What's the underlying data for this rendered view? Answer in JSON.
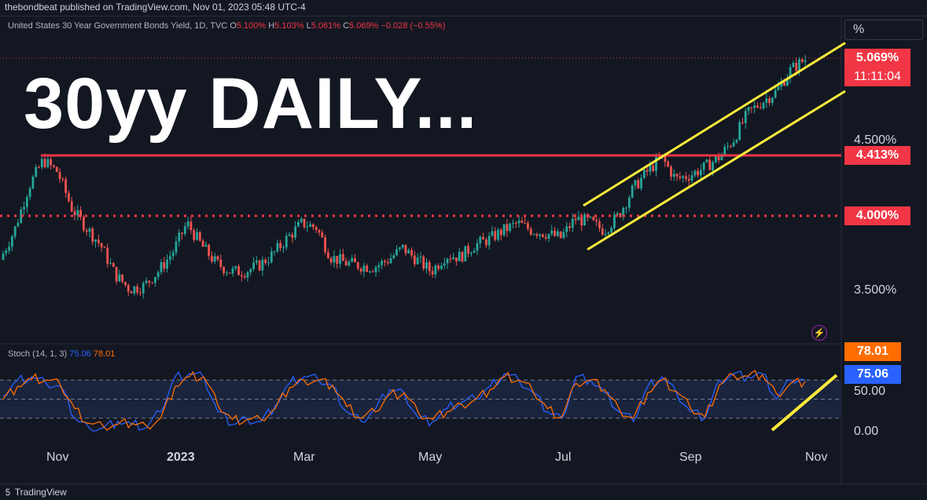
{
  "header": {
    "publisher": "thebondbeat published on TradingView.com, Nov 01, 2023 05:48 UTC-4"
  },
  "symbol": {
    "name": "United States 30 Year Government Bonds Yield, 1D, TVC",
    "o_label": "O",
    "o_value": "5.100%",
    "h_label": "H",
    "h_value": "5.103%",
    "l_label": "L",
    "l_value": "5.061%",
    "c_label": "C",
    "c_value": "5.069%",
    "change": "−0.028 (−0.55%)"
  },
  "scale_button": "%",
  "title_overlay": "30yy DAILY...",
  "price_tags": {
    "last": "5.069%",
    "countdown": "11:11:04",
    "resistance": "4.413%",
    "support": "4.000%"
  },
  "stoch_tags": {
    "d": "78.01",
    "k": "75.06"
  },
  "stochastic": {
    "label": "Stoch (14, 1, 3)",
    "k_value": "75.06",
    "d_value": "78.01"
  },
  "footer": {
    "brand": "TradingView"
  },
  "colors": {
    "background": "#131722",
    "up": "#26a69a",
    "down": "#ef5350",
    "level": "#f23645",
    "channel": "#ffeb3b",
    "stoch_k": "#2962ff",
    "stoch_d": "#ff6d00"
  },
  "chart_data": [
    {
      "type": "candlestick",
      "title": "United States 30 Year Government Bonds Yield, 1D, TVC",
      "ylabel": "",
      "y_ticks": [
        "3.500%",
        "4.500%"
      ],
      "x_ticks": [
        "Nov",
        "2023",
        "Mar",
        "May",
        "Jul",
        "Sep",
        "Nov"
      ],
      "ylim": [
        3.0,
        5.3
      ],
      "horizontal_levels": [
        {
          "value": 4.413,
          "style": "solid",
          "label": "4.413%"
        },
        {
          "value": 4.0,
          "style": "dotted",
          "label": "4.000%"
        }
      ],
      "channel": {
        "upper": [
          {
            "x": "2023-07-12",
            "y": 4.07
          },
          {
            "x": "2023-11-05",
            "y": 5.15
          }
        ],
        "lower": [
          {
            "x": "2023-07-14",
            "y": 3.77
          },
          {
            "x": "2023-11-05",
            "y": 4.82
          }
        ]
      },
      "series": [
        {
          "x": [
            "2022-10-01",
            "2022-10-08",
            "2022-10-15",
            "2022-10-22",
            "2022-10-29",
            "2022-11-05",
            "2022-11-12",
            "2022-11-19",
            "2022-11-26",
            "2022-12-03",
            "2022-12-10",
            "2022-12-17",
            "2022-12-24",
            "2022-12-31",
            "2023-01-07",
            "2023-01-14",
            "2023-01-21",
            "2023-01-28",
            "2023-02-04",
            "2023-02-11",
            "2023-02-18",
            "2023-02-25",
            "2023-03-04",
            "2023-03-11",
            "2023-03-18",
            "2023-03-25",
            "2023-04-01",
            "2023-04-08",
            "2023-04-15",
            "2023-04-22",
            "2023-04-29",
            "2023-05-06",
            "2023-05-13",
            "2023-05-20",
            "2023-05-27",
            "2023-06-03",
            "2023-06-10",
            "2023-06-17",
            "2023-06-24",
            "2023-07-01",
            "2023-07-08",
            "2023-07-15",
            "2023-07-22",
            "2023-07-29",
            "2023-08-05",
            "2023-08-12",
            "2023-08-19",
            "2023-08-26",
            "2023-09-02",
            "2023-09-09",
            "2023-09-16",
            "2023-09-23",
            "2023-09-30",
            "2023-10-07",
            "2023-10-14",
            "2023-10-21",
            "2023-10-28"
          ],
          "values": [
            3.7,
            3.9,
            4.2,
            4.38,
            4.3,
            4.05,
            3.92,
            3.8,
            3.6,
            3.5,
            3.52,
            3.62,
            3.75,
            3.95,
            3.8,
            3.68,
            3.62,
            3.62,
            3.66,
            3.74,
            3.85,
            3.95,
            3.92,
            3.72,
            3.68,
            3.66,
            3.65,
            3.7,
            3.78,
            3.7,
            3.62,
            3.73,
            3.72,
            3.8,
            3.84,
            3.9,
            3.95,
            3.9,
            3.88,
            3.85,
            3.98,
            3.96,
            3.9,
            4.0,
            4.18,
            4.3,
            4.4,
            4.25,
            4.28,
            4.33,
            4.4,
            4.52,
            4.7,
            4.78,
            4.85,
            5.0,
            5.07
          ]
        }
      ]
    },
    {
      "type": "line",
      "title": "Stoch (14, 1, 3)",
      "ylim": [
        0,
        100
      ],
      "y_ticks": [
        "0.00",
        "50.00"
      ],
      "band": [
        20,
        80
      ],
      "series": [
        {
          "name": "%K",
          "values": [
            55,
            80,
            85,
            75,
            70,
            20,
            5,
            5,
            15,
            10,
            5,
            30,
            85,
            90,
            85,
            30,
            10,
            20,
            15,
            40,
            75,
            85,
            80,
            70,
            30,
            15,
            35,
            65,
            60,
            20,
            15,
            35,
            45,
            50,
            70,
            90,
            80,
            60,
            30,
            20,
            85,
            80,
            60,
            30,
            15,
            70,
            85,
            60,
            30,
            20,
            80,
            90,
            85,
            90,
            50,
            80,
            80
          ]
        },
        {
          "name": "%D",
          "values": [
            50,
            70,
            82,
            80,
            72,
            35,
            12,
            7,
            10,
            12,
            8,
            20,
            70,
            85,
            85,
            40,
            18,
            18,
            18,
            35,
            68,
            80,
            80,
            72,
            38,
            20,
            30,
            58,
            60,
            28,
            18,
            30,
            42,
            50,
            65,
            85,
            80,
            62,
            35,
            22,
            75,
            80,
            65,
            35,
            20,
            60,
            80,
            62,
            35,
            22,
            72,
            88,
            86,
            88,
            58,
            75,
            78
          ]
        }
      ]
    }
  ]
}
